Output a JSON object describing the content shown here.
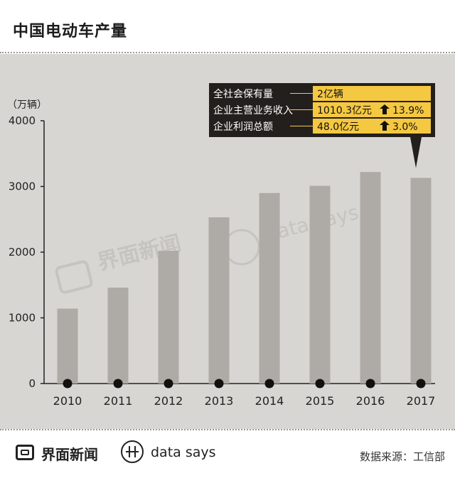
{
  "page": {
    "title": "中国电动车产量",
    "unit_label": "（万辆）",
    "watermark_left": "界面新闻",
    "watermark_right": "data says",
    "footer_brand": "界面新闻",
    "footer_data_says": "data says",
    "source": "数据来源：工信部"
  },
  "colors": {
    "panel": "#d8d6d3",
    "bar": "#aeaaa5",
    "callout_dark": "#231f1c",
    "callout_yellow": "#f5c842"
  },
  "callout": {
    "rows": [
      {
        "label": "全社会保有量",
        "value": "2亿辆",
        "change": ""
      },
      {
        "label": "企业主营业务收入",
        "value": "1010.3亿元",
        "change": "13.9%"
      },
      {
        "label": "企业利润总额",
        "value": "48.0亿元",
        "change": "3.0%"
      }
    ]
  },
  "chart_data": {
    "type": "bar",
    "categories": [
      "2010",
      "2011",
      "2012",
      "2013",
      "2014",
      "2015",
      "2016",
      "2017"
    ],
    "values": [
      1140,
      1460,
      2020,
      2530,
      2900,
      3010,
      3220,
      3130
    ],
    "title": "中国电动车产量",
    "ylabel": "（万辆）",
    "ylim": [
      0,
      4000
    ],
    "yticks": [
      0,
      1000,
      2000,
      3000,
      4000
    ],
    "grid": false,
    "legend": "none"
  }
}
